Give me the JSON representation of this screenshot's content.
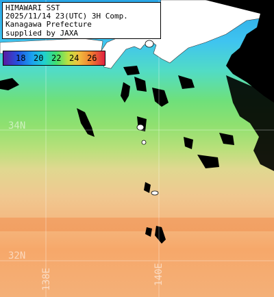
{
  "header": {
    "line1": "HIMAWARI SST",
    "line2": "2025/11/14 23(UTC) 3H Comp.",
    "line3": "Kanagawa Prefecture",
    "line4": "supplied by JAXA"
  },
  "colorbar": {
    "ticks": [
      "18",
      "20",
      "22",
      "24",
      "26"
    ],
    "colors": [
      "#5a1aa0",
      "#2450e0",
      "#1aa0f0",
      "#20d0d0",
      "#40e070",
      "#c0e040",
      "#f0c040",
      "#f08030",
      "#e02040"
    ]
  },
  "grid": {
    "latitudes": [
      "34N",
      "32N"
    ],
    "longitudes": [
      "138E",
      "140E"
    ]
  }
}
